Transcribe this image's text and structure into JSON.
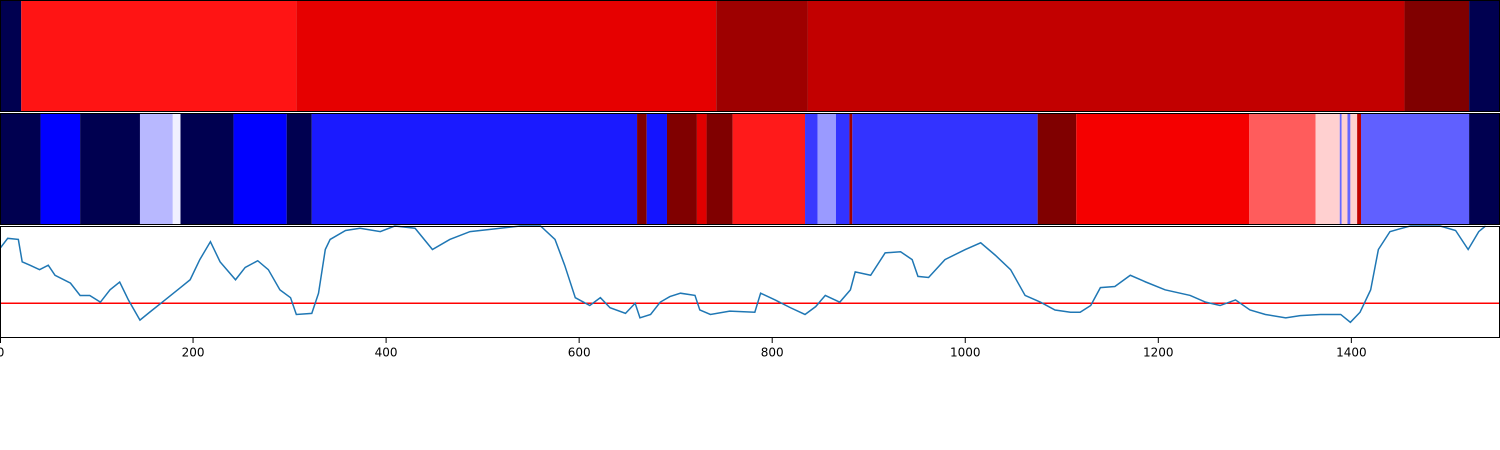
{
  "chart_data": [
    {
      "type": "band",
      "xlim": [
        0,
        1554
      ],
      "edges": [
        0,
        22,
        307,
        742,
        837,
        1455,
        1522,
        1554
      ],
      "colors": [
        "#000050",
        "#ff1414",
        "#e60000",
        "#9e0000",
        "#c20000",
        "#800000",
        "#000050"
      ]
    },
    {
      "type": "band",
      "xlim": [
        0,
        1554
      ],
      "edges": [
        0,
        42,
        83,
        145,
        179,
        187,
        242,
        297,
        323,
        660,
        670,
        691,
        722,
        732,
        759,
        834,
        847,
        866,
        880,
        883,
        1075,
        1115,
        1294,
        1363,
        1388,
        1390,
        1396,
        1399,
        1406,
        1410,
        1522,
        1554
      ],
      "colors": [
        "#000050",
        "#0000ff",
        "#000050",
        "#b8b8ff",
        "#f0f0ff",
        "#000050",
        "#0000ff",
        "#000050",
        "#1a1aff",
        "#800000",
        "#1414ff",
        "#800000",
        "#e00000",
        "#800000",
        "#ff1a1a",
        "#3a3aff",
        "#9a9aff",
        "#3333ff",
        "#a00000",
        "#3333ff",
        "#800000",
        "#f50000",
        "#ff5c5c",
        "#ffd0d0",
        "#6666ff",
        "#ffd0d0",
        "#6666ff",
        "#ffd0d0",
        "#c00000",
        "#6060ff",
        "#000050"
      ]
    },
    {
      "type": "line",
      "xlim": [
        0,
        1554
      ],
      "ylim": [
        0,
        1
      ],
      "xticks": [
        0,
        200,
        400,
        600,
        800,
        1000,
        1200,
        1400
      ],
      "color": "#1f77b4",
      "hline": 0.31,
      "hline_color": "#ff0000",
      "x": [
        0,
        8,
        19,
        23,
        31,
        41,
        50,
        57,
        73,
        83,
        93,
        104,
        114,
        124,
        133,
        145,
        155,
        171,
        187,
        197,
        207,
        218,
        228,
        244,
        254,
        267,
        278,
        290,
        301,
        307,
        323,
        330,
        337,
        342,
        358,
        373,
        394,
        409,
        430,
        448,
        466,
        487,
        508,
        539,
        560,
        575,
        585,
        596,
        611,
        622,
        632,
        648,
        658,
        663,
        674,
        684,
        694,
        705,
        720,
        725,
        736,
        756,
        782,
        788,
        803,
        819,
        834,
        845,
        855,
        870,
        881,
        886,
        902,
        917,
        933,
        945,
        951,
        962,
        979,
        1000,
        1016,
        1031,
        1047,
        1062,
        1078,
        1093,
        1109,
        1119,
        1130,
        1140,
        1155,
        1171,
        1187,
        1207,
        1233,
        1249,
        1264,
        1280,
        1295,
        1311,
        1332,
        1347,
        1368,
        1389,
        1399,
        1409,
        1420,
        1428,
        1440,
        1461,
        1492,
        1508,
        1521,
        1532,
        1539
      ],
      "values": [
        0.8,
        0.89,
        0.88,
        0.68,
        0.65,
        0.61,
        0.65,
        0.56,
        0.49,
        0.38,
        0.38,
        0.32,
        0.43,
        0.5,
        0.34,
        0.16,
        0.23,
        0.34,
        0.45,
        0.52,
        0.7,
        0.86,
        0.68,
        0.52,
        0.63,
        0.69,
        0.61,
        0.43,
        0.36,
        0.21,
        0.22,
        0.4,
        0.79,
        0.88,
        0.96,
        0.98,
        0.95,
        1.0,
        0.98,
        0.79,
        0.88,
        0.95,
        0.97,
        1.0,
        1.0,
        0.88,
        0.65,
        0.36,
        0.29,
        0.36,
        0.27,
        0.22,
        0.31,
        0.18,
        0.21,
        0.32,
        0.37,
        0.4,
        0.38,
        0.25,
        0.21,
        0.24,
        0.23,
        0.4,
        0.34,
        0.27,
        0.21,
        0.28,
        0.38,
        0.32,
        0.43,
        0.59,
        0.56,
        0.76,
        0.77,
        0.7,
        0.55,
        0.54,
        0.7,
        0.79,
        0.85,
        0.74,
        0.61,
        0.38,
        0.32,
        0.25,
        0.23,
        0.23,
        0.29,
        0.45,
        0.46,
        0.56,
        0.5,
        0.43,
        0.38,
        0.32,
        0.29,
        0.34,
        0.25,
        0.21,
        0.18,
        0.2,
        0.21,
        0.21,
        0.14,
        0.23,
        0.43,
        0.79,
        0.95,
        1.0,
        1.0,
        0.96,
        0.79,
        0.95,
        1.0
      ]
    }
  ]
}
